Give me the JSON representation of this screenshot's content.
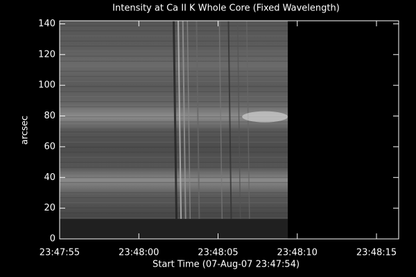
{
  "chart_data": {
    "type": "image",
    "title": "Intensity at Ca II K Whole Core (Fixed Wavelength)",
    "xlabel": "Start Time (07-Aug-07 23:47:54)",
    "ylabel": "arcsec",
    "xlim": [
      85675,
      85696.4
    ],
    "xticks": [
      {
        "value": 85675,
        "label": "23:47:55"
      },
      {
        "value": 85680,
        "label": "23:48:00"
      },
      {
        "value": 85685,
        "label": "23:48:05"
      },
      {
        "value": 85690,
        "label": "23:48:10"
      },
      {
        "value": 85695,
        "label": "23:48:15"
      }
    ],
    "ylim": [
      0,
      142
    ],
    "yticks": [
      0,
      20,
      40,
      60,
      80,
      100,
      120,
      140
    ],
    "image": {
      "xlim": [
        85675,
        85689.4
      ],
      "ylim": [
        0,
        142
      ],
      "blank_below": 13
    }
  }
}
